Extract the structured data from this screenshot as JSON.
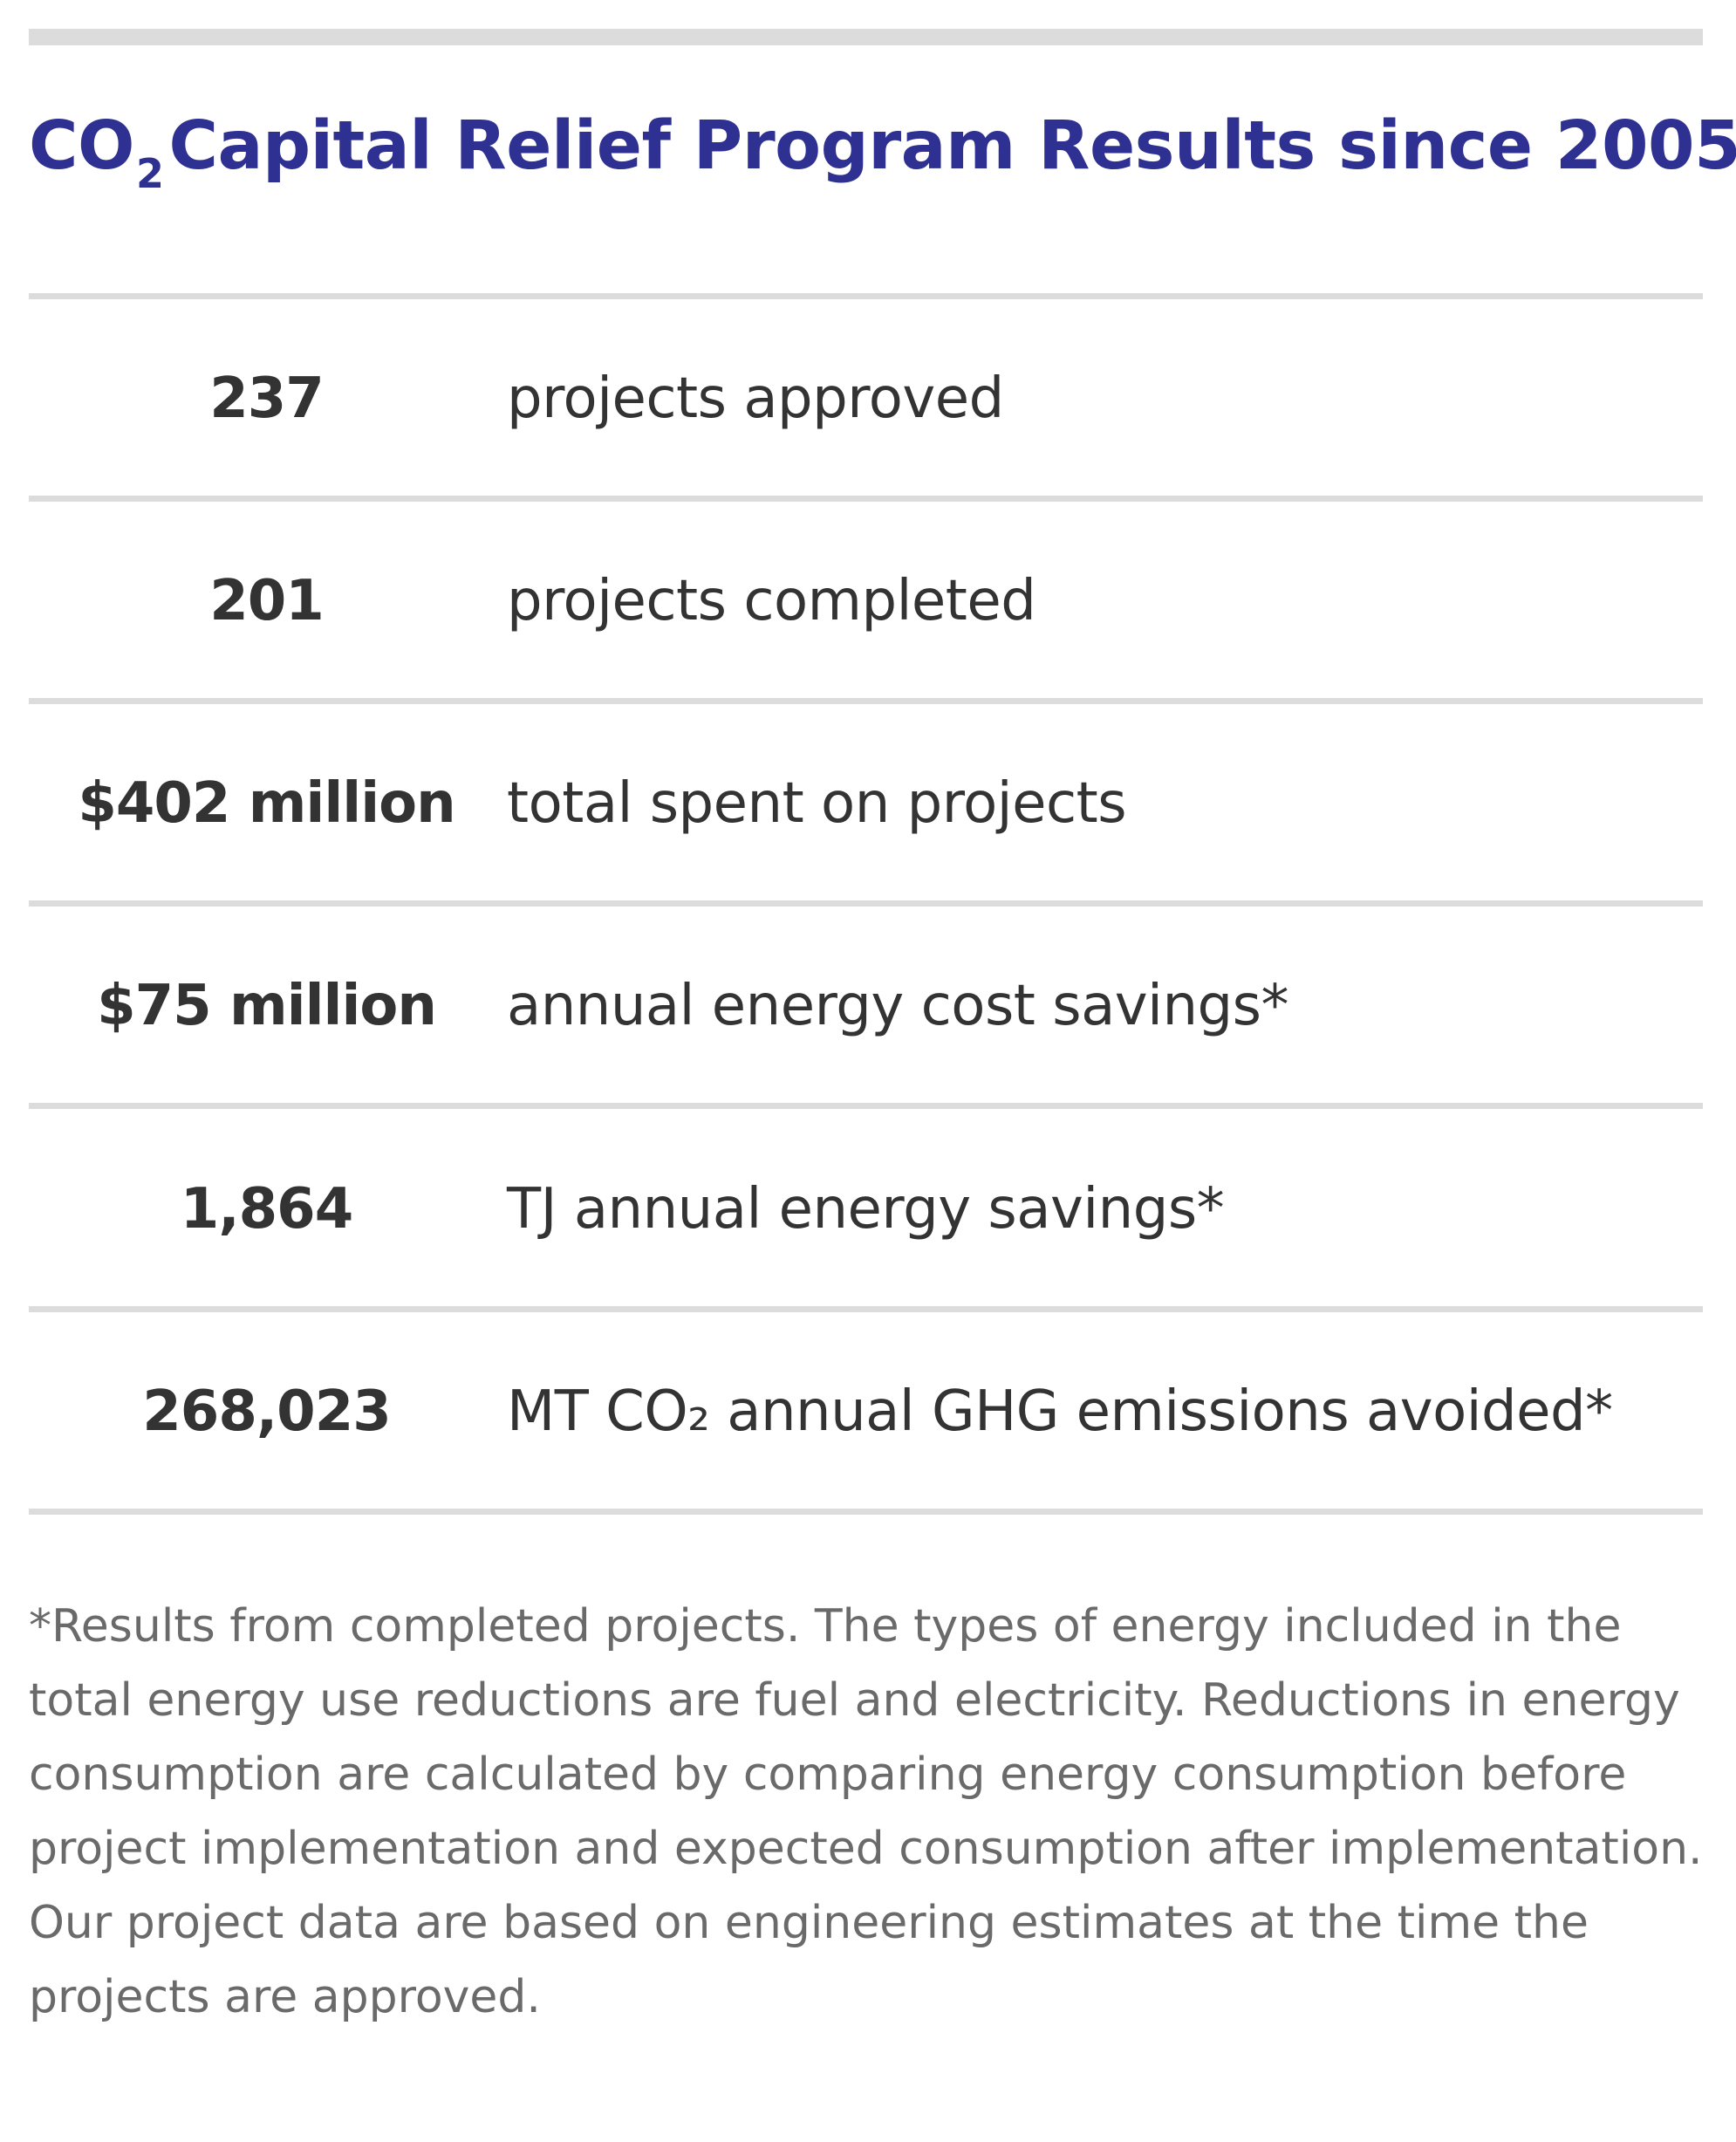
{
  "title": {
    "prefix": "CO",
    "subscript": "2",
    "rest": "Capital Relief Program Results since 2005"
  },
  "stats": [
    {
      "value": "237",
      "label": "projects approved"
    },
    {
      "value": "201",
      "label": "projects completed"
    },
    {
      "value": "$402 million",
      "label": "total spent on projects"
    },
    {
      "value": "$75 million",
      "label": "annual energy cost savings*"
    },
    {
      "value": "1,864",
      "label": "TJ annual energy savings*"
    },
    {
      "value": "268,023",
      "label": "MT CO₂ annual GHG emissions avoided*"
    }
  ],
  "footnote": "*Results from completed projects. The types of energy included in the total energy use reductions are fuel and electricity. Reductions in energy consumption are calculated by comparing energy consumption before project implementation and expected consumption after implementation. Our project data are based on engineering estimates at the time the projects are approved.",
  "colors": {
    "title": "#2e3092",
    "value_text": "#333333",
    "footnote_text": "#6a6a6a",
    "rule": "#dcdcdc"
  }
}
